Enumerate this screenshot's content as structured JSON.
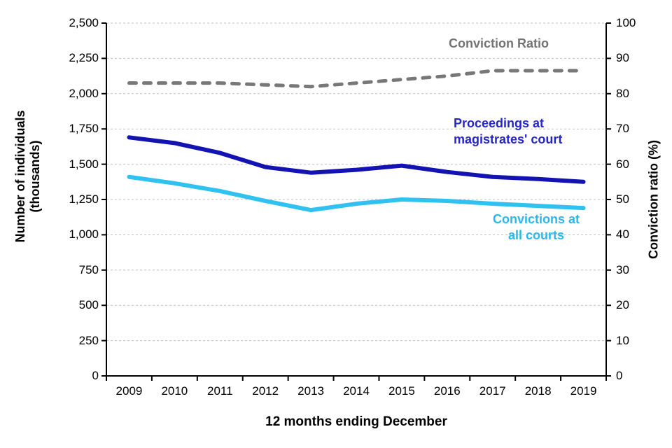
{
  "chart_data": {
    "type": "line",
    "title": "",
    "xlabel": "12 months ending December",
    "ylabel_left": "Number of individuals\n(thousands)",
    "ylabel_right": "Conviction ratio (%)",
    "x": [
      "2009",
      "2010",
      "2011",
      "2012",
      "2013",
      "2014",
      "2015",
      "2016",
      "2017",
      "2018",
      "2019"
    ],
    "ylim_left": [
      0,
      2500
    ],
    "yticks_left": [
      "2,500",
      "2,250",
      "2,000",
      "1,750",
      "1,500",
      "1,250",
      "1,000",
      "750",
      "500",
      "250",
      "0"
    ],
    "ylim_right": [
      0,
      100
    ],
    "yticks_right": [
      "100",
      "90",
      "80",
      "70",
      "60",
      "50",
      "40",
      "30",
      "20",
      "10",
      "0"
    ],
    "grid": "horizontal dashed gridlines at every left-axis tick",
    "legend_position": "labels placed inside plot next to lines",
    "series": [
      {
        "name": "Proceedings at magistrates' court",
        "axis": "left",
        "style": "solid",
        "color": "#1313b4",
        "label_color": "#2525cd",
        "values": [
          1690,
          1650,
          1580,
          1480,
          1440,
          1460,
          1490,
          1445,
          1410,
          1395,
          1375
        ]
      },
      {
        "name": "Convictions at all courts",
        "axis": "left",
        "style": "solid",
        "color": "#2fc2f0",
        "label_color": "#29b7ef",
        "values": [
          1410,
          1365,
          1310,
          1240,
          1175,
          1220,
          1250,
          1240,
          1220,
          1205,
          1190
        ]
      },
      {
        "name": "Conviction Ratio",
        "axis": "right",
        "style": "dashed",
        "color": "#787878",
        "label_color": "#737373",
        "values": [
          83,
          83,
          83,
          82.5,
          82,
          83,
          84,
          85,
          86.5,
          86.5,
          86.5
        ]
      }
    ],
    "labels": {
      "conviction_ratio": "Conviction Ratio",
      "proceedings": "Proceedings at\nmagistrates' court",
      "convictions": "Convictions at\nall courts"
    },
    "colors": {
      "grid": "#bfbfbf",
      "axis": "#000000",
      "background": "#ffffff",
      "tick_text": "#000000"
    }
  }
}
